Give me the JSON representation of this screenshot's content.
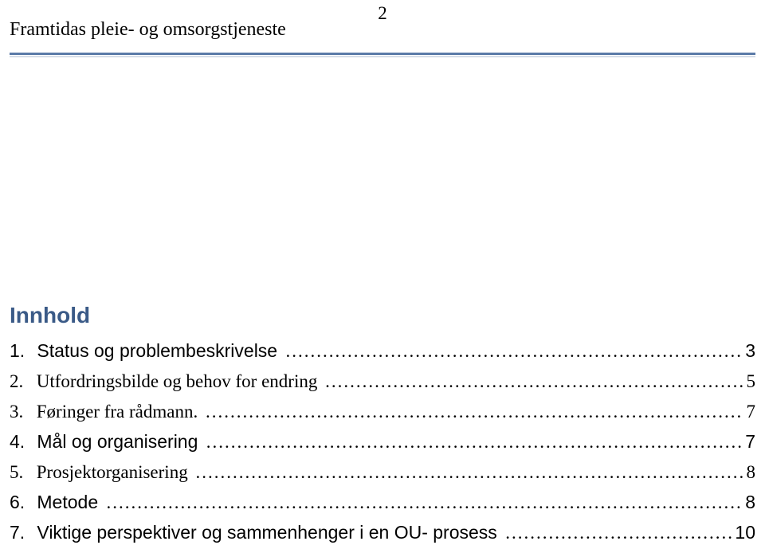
{
  "header": {
    "title": "Framtidas pleie- og omsorgstjeneste",
    "page_number": "2"
  },
  "toc": {
    "heading": "Innhold",
    "entries": [
      {
        "num": "1.",
        "text": "Status og problembeskrivelse",
        "page": "3",
        "sans": true
      },
      {
        "num": "2.",
        "text": "Utfordringsbilde og behov for endring",
        "page": "5",
        "sans": false
      },
      {
        "num": "3.",
        "text": "Føringer fra rådmann.",
        "page": "7",
        "sans": false
      },
      {
        "num": "4.",
        "text": "Mål og organisering",
        "page": "7",
        "sans": true
      },
      {
        "num": "5.",
        "text": "Prosjektorganisering",
        "page": "8",
        "sans": false
      },
      {
        "num": "6.",
        "text": "Metode",
        "page": "8",
        "sans": true
      },
      {
        "num": "7.",
        "text": "Viktige perspektiver og sammenhenger i en OU- prosess",
        "page": "10",
        "sans": true
      }
    ]
  },
  "colors": {
    "divider": "#5b7aa8",
    "heading": "#3a5a87",
    "text": "#000000",
    "background": "#ffffff"
  }
}
